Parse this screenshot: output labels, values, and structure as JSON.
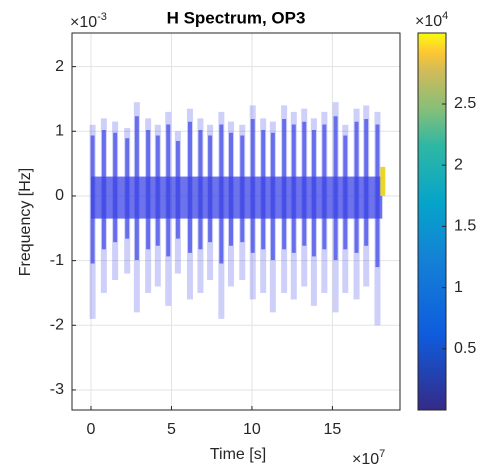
{
  "chart_data": {
    "type": "spectrogram",
    "title": "H Spectrum, OP3",
    "x_label": "Time [s]",
    "y_label": "Frequency [Hz]",
    "x_exponent": {
      "base": "×10",
      "power": "7"
    },
    "y_exponent": {
      "base": "×10",
      "power": "-3"
    },
    "c_exponent": {
      "base": "×10",
      "power": "4"
    },
    "xlim": [
      -1.18,
      19.2
    ],
    "ylim": [
      -3.31,
      2.52
    ],
    "xticks": [
      0,
      5,
      10,
      15
    ],
    "yticks": [
      -3,
      -2,
      -1,
      0,
      1,
      2
    ],
    "clim": [
      0,
      3.08
    ],
    "cticks": [
      0.5,
      1,
      1.5,
      2,
      2.5
    ],
    "grid": true,
    "color": "#3c44e6",
    "band": {
      "x": [
        0,
        18.1
      ],
      "y": [
        -0.35,
        0.3
      ],
      "value": 0.4
    },
    "x": [
      0.1,
      0.8,
      1.5,
      2.25,
      2.85,
      3.55,
      4.15,
      4.8,
      5.4,
      6.15,
      6.8,
      7.4,
      8.1,
      8.7,
      9.4,
      10.05,
      10.7,
      11.3,
      12.0,
      12.6,
      13.25,
      13.85,
      14.5,
      15.2,
      15.8,
      16.5,
      17.1,
      17.8
    ],
    "top": [
      1.1,
      1.2,
      1.15,
      1.05,
      1.45,
      1.2,
      1.1,
      1.3,
      1.0,
      1.35,
      1.2,
      1.1,
      1.3,
      1.15,
      1.1,
      1.4,
      1.2,
      1.15,
      1.4,
      1.3,
      1.35,
      1.2,
      1.3,
      1.45,
      1.1,
      1.35,
      1.4,
      1.3
    ],
    "bottom": [
      -1.9,
      -1.5,
      -1.3,
      -1.2,
      -1.8,
      -1.5,
      -1.4,
      -1.7,
      -1.2,
      -1.6,
      -1.5,
      -1.3,
      -1.9,
      -1.4,
      -1.3,
      -1.6,
      -1.5,
      -1.8,
      -1.5,
      -1.6,
      -1.4,
      -1.7,
      -1.5,
      -1.8,
      -1.5,
      -1.6,
      -1.4,
      -2.0
    ],
    "peak": {
      "x": 18.1,
      "y": [
        0,
        0.45
      ],
      "value": 2.8
    }
  }
}
